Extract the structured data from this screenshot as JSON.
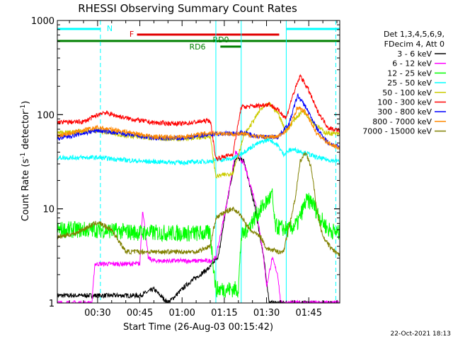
{
  "chart_data": {
    "type": "line",
    "title": "RHESSI Observing Summary Count Rates",
    "xlabel": "Start Time (26-Aug-03 00:15:42)",
    "ylabel_main": "Count Rate (s",
    "ylabel_sup1": "-1",
    "ylabel_mid": " detector",
    "ylabel_sup2": "-1",
    "ylabel_end": ")",
    "y_scale": "log",
    "ylim": [
      1,
      1000
    ],
    "xlim_minutes": [
      15.7,
      116.0
    ],
    "x_ticks": [
      {
        "t": 30,
        "label": "00:30"
      },
      {
        "t": 45,
        "label": "00:45"
      },
      {
        "t": 60,
        "label": "01:00"
      },
      {
        "t": 75,
        "label": "01:15"
      },
      {
        "t": 90,
        "label": "01:30"
      },
      {
        "t": 105,
        "label": "01:45"
      }
    ],
    "y_ticks": [
      {
        "v": 1,
        "label": "1"
      },
      {
        "v": 10,
        "label": "10"
      },
      {
        "v": 100,
        "label": "100"
      },
      {
        "v": 1000,
        "label": "1000"
      }
    ],
    "legend_header": [
      "Det 1,3,4,5,6,9,",
      "FDecim 4, Att 0"
    ],
    "series": [
      {
        "name": "3 - 6 keV",
        "color": "#000000",
        "points": [
          [
            16,
            1.2
          ],
          [
            45,
            1.2
          ],
          [
            50,
            1.4
          ],
          [
            55,
            1.0
          ],
          [
            62,
            1.6
          ],
          [
            70,
            2.4
          ],
          [
            73,
            3.2
          ],
          [
            76,
            12
          ],
          [
            79,
            35
          ],
          [
            82,
            32
          ],
          [
            86,
            10
          ],
          [
            89,
            3
          ],
          [
            91,
            1
          ],
          [
            116,
            1
          ]
        ]
      },
      {
        "name": "6 - 12 keV",
        "color": "#ff00ff",
        "points": [
          [
            16,
            1.0
          ],
          [
            28,
            1.0
          ],
          [
            29,
            2.6
          ],
          [
            45,
            2.6
          ],
          [
            46,
            10
          ],
          [
            48,
            3
          ],
          [
            50,
            2.8
          ],
          [
            70,
            2.8
          ],
          [
            72,
            3
          ],
          [
            76,
            12
          ],
          [
            79,
            40
          ],
          [
            82,
            30
          ],
          [
            86,
            12
          ],
          [
            89,
            3
          ],
          [
            90,
            1.5
          ],
          [
            92,
            3
          ],
          [
            94,
            2
          ],
          [
            95,
            1
          ],
          [
            116,
            1
          ]
        ]
      },
      {
        "name": "12 - 25 keV",
        "color": "#00ff00",
        "points": [
          [
            16,
            6
          ],
          [
            30,
            6
          ],
          [
            45,
            5.6
          ],
          [
            60,
            5.5
          ],
          [
            70,
            5.5
          ],
          [
            72,
            1.4
          ],
          [
            80,
            1.4
          ],
          [
            81,
            5
          ],
          [
            88,
            10
          ],
          [
            92,
            14
          ],
          [
            93,
            6.5
          ],
          [
            98,
            6
          ],
          [
            101,
            7
          ],
          [
            104,
            12
          ],
          [
            106,
            12
          ],
          [
            109,
            8
          ],
          [
            112,
            6
          ],
          [
            116,
            5.5
          ]
        ]
      },
      {
        "name": "25 - 50 keV",
        "color": "#00ffff",
        "points": [
          [
            16,
            35
          ],
          [
            30,
            35
          ],
          [
            45,
            32
          ],
          [
            60,
            31
          ],
          [
            70,
            32
          ],
          [
            72,
            33
          ],
          [
            78,
            34
          ],
          [
            86,
            48
          ],
          [
            91,
            55
          ],
          [
            94,
            47
          ],
          [
            96,
            38
          ],
          [
            99,
            43
          ],
          [
            103,
            40
          ],
          [
            108,
            35
          ],
          [
            112,
            33
          ],
          [
            116,
            32
          ]
        ]
      },
      {
        "name": "50 - 100 keV",
        "color": "#cccc00",
        "points": [
          [
            16,
            64
          ],
          [
            30,
            67
          ],
          [
            40,
            60
          ],
          [
            50,
            56
          ],
          [
            60,
            55
          ],
          [
            70,
            59
          ],
          [
            72,
            22
          ],
          [
            78,
            24
          ],
          [
            82,
            60
          ],
          [
            88,
            115
          ],
          [
            91,
            130
          ],
          [
            94,
            105
          ],
          [
            97,
            66
          ],
          [
            100,
            90
          ],
          [
            103,
            110
          ],
          [
            107,
            80
          ],
          [
            111,
            64
          ],
          [
            116,
            62
          ]
        ]
      },
      {
        "name": "100 - 300 keV",
        "color": "#ff0000",
        "points": [
          [
            16,
            83
          ],
          [
            25,
            84
          ],
          [
            32,
            106
          ],
          [
            40,
            92
          ],
          [
            50,
            82
          ],
          [
            60,
            80
          ],
          [
            70,
            87
          ],
          [
            72,
            34
          ],
          [
            78,
            38
          ],
          [
            81,
            120
          ],
          [
            88,
            125
          ],
          [
            91,
            130
          ],
          [
            94,
            112
          ],
          [
            97,
            92
          ],
          [
            99,
            150
          ],
          [
            102,
            260
          ],
          [
            105,
            180
          ],
          [
            108,
            110
          ],
          [
            112,
            72
          ],
          [
            116,
            68
          ]
        ]
      },
      {
        "name": "300 - 800 keV",
        "color": "#0000ff",
        "points": [
          [
            16,
            56
          ],
          [
            30,
            68
          ],
          [
            40,
            62
          ],
          [
            50,
            56
          ],
          [
            60,
            56
          ],
          [
            70,
            62
          ],
          [
            76,
            63
          ],
          [
            82,
            64
          ],
          [
            88,
            58
          ],
          [
            94,
            58
          ],
          [
            98,
            80
          ],
          [
            101,
            160
          ],
          [
            104,
            120
          ],
          [
            108,
            70
          ],
          [
            112,
            50
          ],
          [
            116,
            45
          ]
        ]
      },
      {
        "name": "800 - 7000 keV",
        "color": "#ff8800",
        "points": [
          [
            16,
            60
          ],
          [
            30,
            73
          ],
          [
            40,
            66
          ],
          [
            50,
            58
          ],
          [
            60,
            58
          ],
          [
            70,
            64
          ],
          [
            76,
            63
          ],
          [
            82,
            62
          ],
          [
            88,
            58
          ],
          [
            94,
            58
          ],
          [
            98,
            72
          ],
          [
            101,
            120
          ],
          [
            104,
            105
          ],
          [
            108,
            62
          ],
          [
            112,
            50
          ],
          [
            116,
            44
          ]
        ]
      },
      {
        "name": "7000 - 15000 keV",
        "color": "#808000",
        "points": [
          [
            16,
            5
          ],
          [
            22,
            5.5
          ],
          [
            30,
            7.2
          ],
          [
            35,
            6
          ],
          [
            40,
            3.5
          ],
          [
            45,
            3.5
          ],
          [
            55,
            3.5
          ],
          [
            60,
            3.5
          ],
          [
            65,
            3.5
          ],
          [
            70,
            4
          ],
          [
            72,
            8
          ],
          [
            76,
            9.5
          ],
          [
            78,
            10
          ],
          [
            80,
            9.2
          ],
          [
            84,
            6
          ],
          [
            88,
            5
          ],
          [
            90,
            3.8
          ],
          [
            94,
            3.5
          ],
          [
            96,
            3.5
          ],
          [
            100,
            12
          ],
          [
            102,
            32
          ],
          [
            104,
            40
          ],
          [
            106,
            26
          ],
          [
            108,
            9
          ],
          [
            110,
            5
          ],
          [
            113,
            3.8
          ],
          [
            116,
            3.2
          ]
        ]
      }
    ],
    "flags": [
      {
        "label": "N",
        "color": "#00ffff",
        "level": 0,
        "spans": [
          [
            15.7,
            31
          ],
          [
            97,
            116
          ]
        ]
      },
      {
        "label": "F",
        "color": "#e00000",
        "level": 1,
        "spans": [
          [
            44,
            94.5
          ]
        ]
      },
      {
        "label": "RD0",
        "color": "#008000",
        "level": 2,
        "spans": [
          [
            15.7,
            116
          ]
        ]
      },
      {
        "label": "RD6",
        "color": "#008000",
        "level": 3,
        "spans": [
          [
            73.6,
            81
          ]
        ]
      }
    ],
    "markers": [
      {
        "t": 31,
        "style": "dashed",
        "color": "#00ffff"
      },
      {
        "t": 72,
        "style": "solid",
        "color": "#00ffff"
      },
      {
        "t": 81,
        "style": "solid",
        "color": "#00ffff"
      },
      {
        "t": 97,
        "style": "solid",
        "color": "#00ffff"
      },
      {
        "t": 114.6,
        "style": "dashed",
        "color": "#00ffff"
      }
    ]
  },
  "footer_timestamp": "22-Oct-2021 18:13"
}
